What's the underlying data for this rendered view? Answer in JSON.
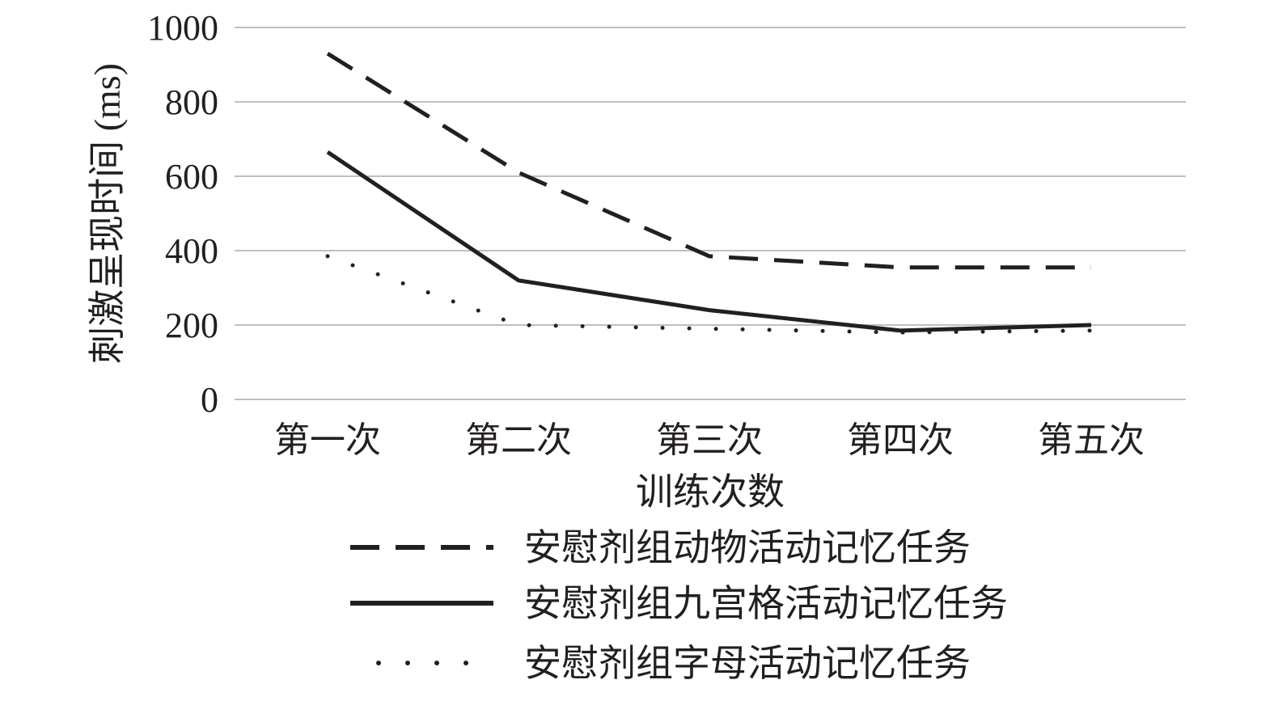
{
  "chart_data": {
    "type": "line",
    "title": "",
    "xlabel": "训练次数",
    "ylabel": "刺激呈现时间 (ms)",
    "ylim": [
      0,
      1000
    ],
    "yticks": [
      "0",
      "200",
      "400",
      "600",
      "800",
      "1000"
    ],
    "categories": [
      "第一次",
      "第二次",
      "第三次",
      "第四次",
      "第五次"
    ],
    "grid": "horizontal",
    "legend_position": "bottom",
    "series": [
      {
        "name": "安慰剂组动物活动记忆任务",
        "style": "dashed",
        "color": "#231f20",
        "values": [
          930,
          610,
          385,
          355,
          355
        ]
      },
      {
        "name": "安慰剂组九宫格活动记忆任务",
        "style": "solid",
        "color": "#231f20",
        "values": [
          665,
          320,
          240,
          185,
          200
        ]
      },
      {
        "name": "安慰剂组字母活动记忆任务",
        "style": "dotted",
        "color": "#231f20",
        "values": [
          385,
          200,
          190,
          180,
          185
        ]
      }
    ]
  }
}
